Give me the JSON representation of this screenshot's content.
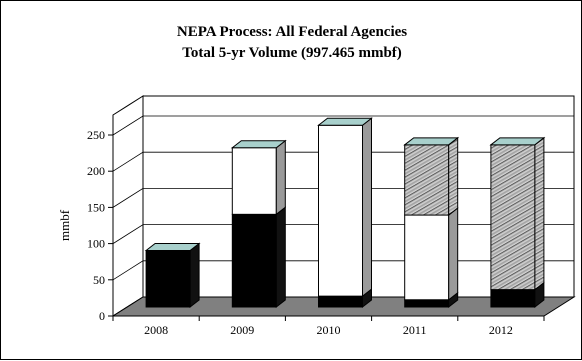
{
  "chart_data": {
    "type": "bar",
    "stacked": true,
    "three_d": true,
    "title": [
      "NEPA Process: All Federal Agencies",
      "Total 5-yr Volume (997.465 mmbf)"
    ],
    "xlabel": "",
    "ylabel": "mmbf",
    "ylim": [
      0,
      250
    ],
    "yticks": [
      0,
      50,
      100,
      150,
      200,
      250
    ],
    "grid": true,
    "legend": "none",
    "categories": [
      "2008",
      "2009",
      "2010",
      "2011",
      "2012"
    ],
    "series": [
      {
        "fill": "solid-black",
        "values": [
          78,
          128,
          15,
          10,
          24
        ]
      },
      {
        "fill": "white",
        "values": [
          0,
          92,
          236,
          117,
          0
        ]
      },
      {
        "fill": "diagonal-hatch",
        "values": [
          0,
          0,
          0,
          97,
          200
        ]
      }
    ],
    "colors": {
      "top_face": "#a8d0cc",
      "side_face": "#9a9a9a",
      "floor": "#808080",
      "black": "#000000",
      "white": "#ffffff"
    }
  }
}
